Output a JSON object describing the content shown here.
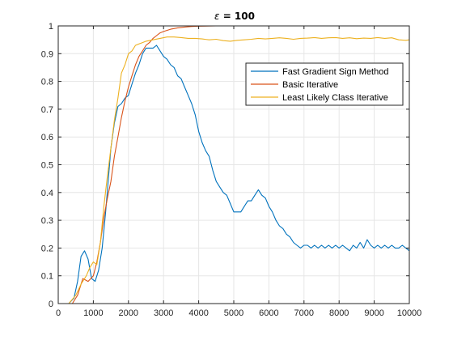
{
  "chart_data": {
    "type": "line",
    "title": "ε = 100",
    "title_symbol": "ε",
    "title_rest": " = 100",
    "xlabel": "",
    "ylabel": "",
    "xlim": [
      0,
      10000
    ],
    "ylim": [
      0,
      1
    ],
    "x_ticks": [
      0,
      1000,
      2000,
      3000,
      4000,
      5000,
      6000,
      7000,
      8000,
      9000,
      10000
    ],
    "x_tick_labels": [
      "0",
      "1000",
      "2000",
      "3000",
      "4000",
      "5000",
      "6000",
      "7000",
      "8000",
      "9000",
      "10000"
    ],
    "y_ticks": [
      0,
      0.1,
      0.2,
      0.3,
      0.4,
      0.5,
      0.6,
      0.7,
      0.8,
      0.9,
      1
    ],
    "y_tick_labels": [
      "0",
      "0.1",
      "0.2",
      "0.3",
      "0.4",
      "0.5",
      "0.6",
      "0.7",
      "0.8",
      "0.9",
      "1"
    ],
    "grid": true,
    "legend_position": "top-right",
    "series": [
      {
        "name": "Fast Gradient Sign Method",
        "color": "#0072BD",
        "x": [
          0,
          300,
          450,
          550,
          650,
          750,
          850,
          950,
          1050,
          1150,
          1250,
          1350,
          1500,
          1600,
          1700,
          1800,
          1900,
          2000,
          2100,
          2200,
          2300,
          2400,
          2500,
          2600,
          2700,
          2800,
          2900,
          3000,
          3100,
          3200,
          3300,
          3400,
          3500,
          3600,
          3700,
          3800,
          3900,
          4000,
          4100,
          4200,
          4300,
          4400,
          4500,
          4600,
          4700,
          4800,
          4900,
          5000,
          5100,
          5200,
          5300,
          5400,
          5500,
          5600,
          5700,
          5800,
          5900,
          6000,
          6100,
          6200,
          6300,
          6400,
          6500,
          6600,
          6700,
          6800,
          6900,
          7000,
          7100,
          7200,
          7300,
          7400,
          7500,
          7600,
          7700,
          7800,
          7900,
          8000,
          8100,
          8200,
          8300,
          8400,
          8500,
          8600,
          8700,
          8800,
          8900,
          9000,
          9100,
          9200,
          9300,
          9400,
          9500,
          9600,
          9700,
          9800,
          9900,
          10000
        ],
        "y": [
          0,
          0,
          0.02,
          0.08,
          0.17,
          0.19,
          0.16,
          0.09,
          0.08,
          0.12,
          0.2,
          0.33,
          0.56,
          0.65,
          0.71,
          0.72,
          0.74,
          0.75,
          0.79,
          0.83,
          0.86,
          0.9,
          0.92,
          0.92,
          0.92,
          0.93,
          0.91,
          0.89,
          0.88,
          0.86,
          0.85,
          0.82,
          0.81,
          0.78,
          0.75,
          0.72,
          0.68,
          0.62,
          0.58,
          0.55,
          0.53,
          0.48,
          0.44,
          0.42,
          0.4,
          0.39,
          0.36,
          0.33,
          0.33,
          0.33,
          0.35,
          0.37,
          0.37,
          0.39,
          0.41,
          0.39,
          0.38,
          0.35,
          0.33,
          0.3,
          0.28,
          0.27,
          0.25,
          0.24,
          0.22,
          0.21,
          0.2,
          0.21,
          0.21,
          0.2,
          0.21,
          0.2,
          0.21,
          0.2,
          0.21,
          0.2,
          0.21,
          0.2,
          0.21,
          0.2,
          0.19,
          0.21,
          0.2,
          0.22,
          0.2,
          0.23,
          0.21,
          0.2,
          0.21,
          0.2,
          0.21,
          0.2,
          0.21,
          0.2,
          0.2,
          0.21,
          0.2,
          0.19
        ]
      },
      {
        "name": "Basic Iterative",
        "color": "#D95319",
        "x": [
          0,
          400,
          550,
          700,
          850,
          1000,
          1100,
          1200,
          1300,
          1400,
          1500,
          1600,
          1700,
          1800,
          1900,
          2000,
          2100,
          2200,
          2300,
          2400,
          2500,
          2600,
          2700,
          2800,
          2900,
          3000,
          3200,
          3400,
          3600,
          3800,
          4000,
          4500,
          5000,
          6000,
          7000,
          8000,
          9000,
          10000
        ],
        "y": [
          0,
          0,
          0.03,
          0.09,
          0.08,
          0.1,
          0.15,
          0.22,
          0.31,
          0.38,
          0.44,
          0.53,
          0.6,
          0.67,
          0.73,
          0.78,
          0.82,
          0.86,
          0.89,
          0.91,
          0.93,
          0.94,
          0.955,
          0.965,
          0.975,
          0.98,
          0.988,
          0.993,
          0.996,
          0.998,
          0.999,
          1,
          1,
          1,
          1,
          1,
          1,
          1
        ]
      },
      {
        "name": "Least Likely Class Iterative",
        "color": "#EDB120",
        "x": [
          0,
          300,
          500,
          650,
          800,
          900,
          1000,
          1100,
          1200,
          1300,
          1400,
          1500,
          1600,
          1700,
          1800,
          1900,
          2000,
          2100,
          2200,
          2300,
          2400,
          2500,
          2700,
          2900,
          3100,
          3300,
          3500,
          3700,
          3900,
          4100,
          4300,
          4500,
          4700,
          4900,
          5100,
          5300,
          5500,
          5700,
          5900,
          6100,
          6300,
          6500,
          6700,
          6900,
          7100,
          7300,
          7500,
          7700,
          7900,
          8100,
          8300,
          8500,
          8700,
          8900,
          9100,
          9300,
          9500,
          9700,
          9900,
          10000
        ],
        "y": [
          0,
          0,
          0.03,
          0.07,
          0.1,
          0.13,
          0.15,
          0.14,
          0.22,
          0.35,
          0.46,
          0.56,
          0.66,
          0.74,
          0.83,
          0.86,
          0.9,
          0.91,
          0.93,
          0.935,
          0.94,
          0.945,
          0.95,
          0.955,
          0.96,
          0.96,
          0.958,
          0.955,
          0.955,
          0.953,
          0.95,
          0.952,
          0.947,
          0.945,
          0.948,
          0.95,
          0.952,
          0.955,
          0.953,
          0.955,
          0.957,
          0.955,
          0.952,
          0.955,
          0.956,
          0.958,
          0.955,
          0.957,
          0.958,
          0.955,
          0.957,
          0.954,
          0.956,
          0.955,
          0.958,
          0.955,
          0.957,
          0.95,
          0.948,
          0.95
        ]
      }
    ]
  }
}
